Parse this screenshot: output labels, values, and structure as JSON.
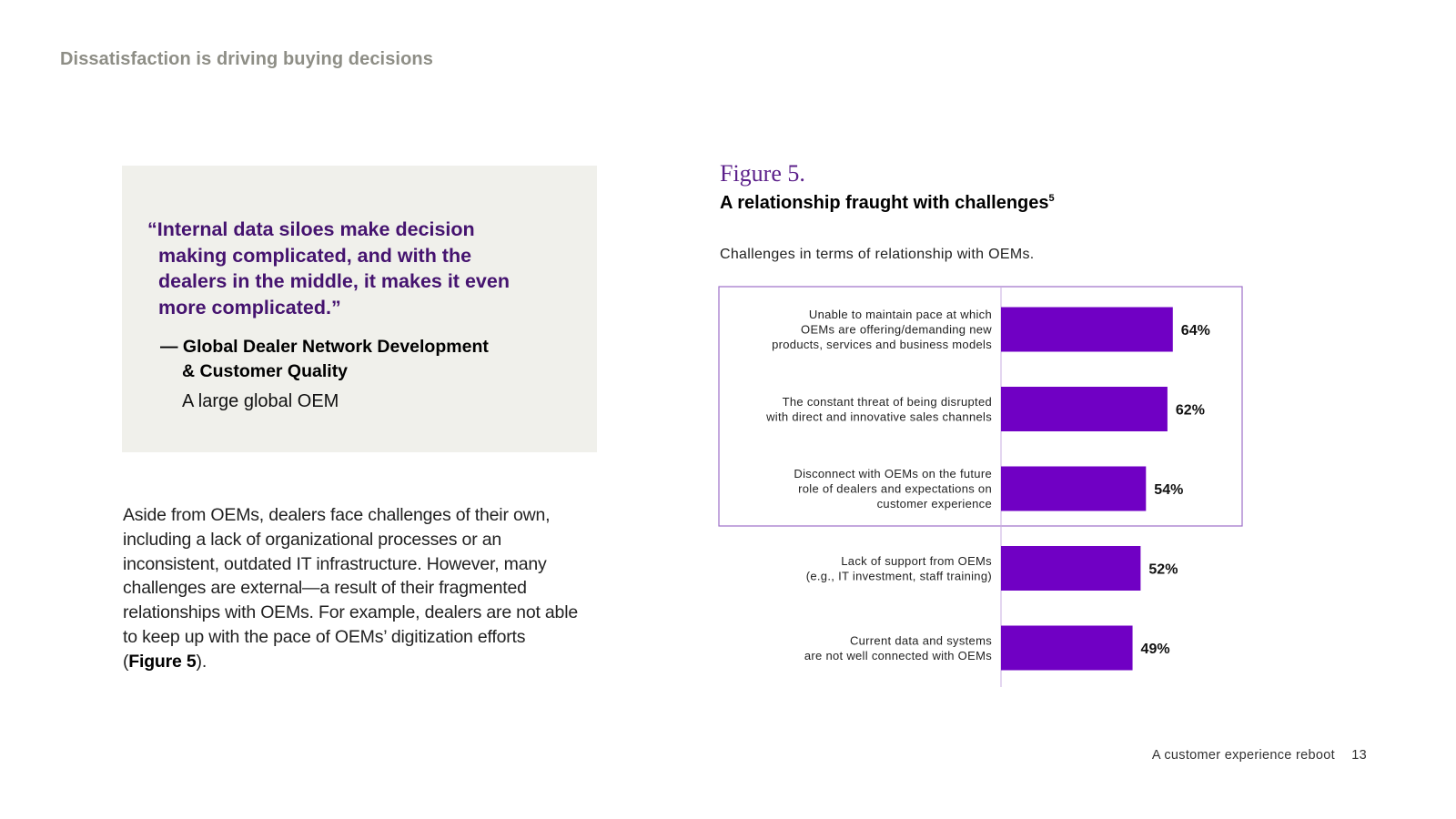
{
  "header": {
    "section_title": "Dissatisfaction is driving buying decisions"
  },
  "quote": {
    "lines": [
      "“Internal data siloes make decision",
      "making complicated, and with the",
      "dealers in the middle, it makes it even",
      "more complicated.”"
    ],
    "attribution_line1": "— Global Dealer Network Development",
    "attribution_line2": "& Customer Quality",
    "affiliation": "A large global OEM"
  },
  "body": {
    "text_before": "Aside from OEMs, dealers face challenges of their own, including a lack of organizational processes or an inconsistent, outdated IT infrastructure. However, many challenges are external—a result of their fragmented relationships with OEMs. For example, dealers are not able to keep up with the pace of OEMs’ digitization efforts (",
    "figure_ref": "Figure 5",
    "text_after": ")."
  },
  "figure": {
    "label": "Figure 5.",
    "title": "A relationship fraught with challenges",
    "footnote_marker": "5",
    "subtitle": "Challenges in terms of relationship with OEMs."
  },
  "chart_data": {
    "type": "bar",
    "orientation": "horizontal",
    "categories": [
      [
        "Unable to maintain pace at which",
        "OEMs are offering/demanding new",
        "products, services and business models"
      ],
      [
        "The constant threat of being disrupted",
        "with direct and innovative sales channels"
      ],
      [
        "Disconnect with OEMs on the future",
        "role of dealers and expectations on",
        "customer experience"
      ],
      [
        "Lack of support from OEMs",
        "(e.g., IT investment, staff training)"
      ],
      [
        "Current data and systems",
        "are not well connected with OEMs"
      ]
    ],
    "values": [
      64,
      62,
      54,
      52,
      49
    ],
    "value_labels": [
      "64%",
      "62%",
      "54%",
      "52%",
      "49%"
    ],
    "highlighted_categories": 3,
    "xlim": [
      0,
      100
    ],
    "bar_color": "#7000c4",
    "highlight_border_color": "#9d6fc8",
    "axis_color": "#c9aee0"
  },
  "footer": {
    "report_title": "A customer experience reboot",
    "page_number": "13"
  }
}
